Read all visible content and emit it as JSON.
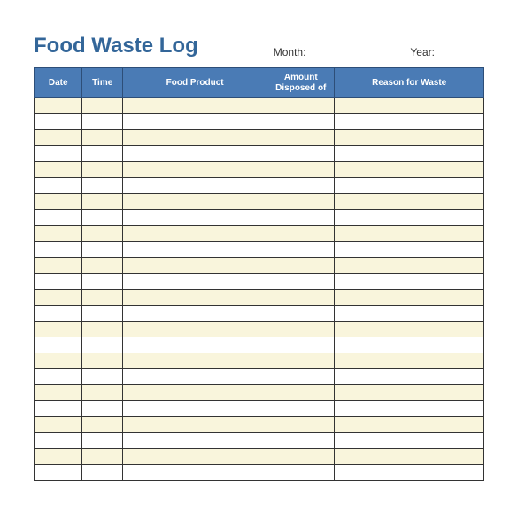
{
  "title": "Food Waste Log",
  "meta": {
    "month_label": "Month:",
    "year_label": "Year:"
  },
  "table": {
    "columns": [
      {
        "label": "Date",
        "width": 50
      },
      {
        "label": "Time",
        "width": 42
      },
      {
        "label": "Food Product",
        "width": 150
      },
      {
        "label": "Amount Disposed of",
        "width": 70
      },
      {
        "label": "Reason for Waste",
        "width": 155
      }
    ],
    "row_count": 24,
    "alt_row_bg": "#f9f5dc",
    "row_bg": "#ffffff",
    "header_bg": "#4a7bb5",
    "header_text_color": "#ffffff",
    "border_color": "#333333",
    "title_color": "#336699"
  }
}
